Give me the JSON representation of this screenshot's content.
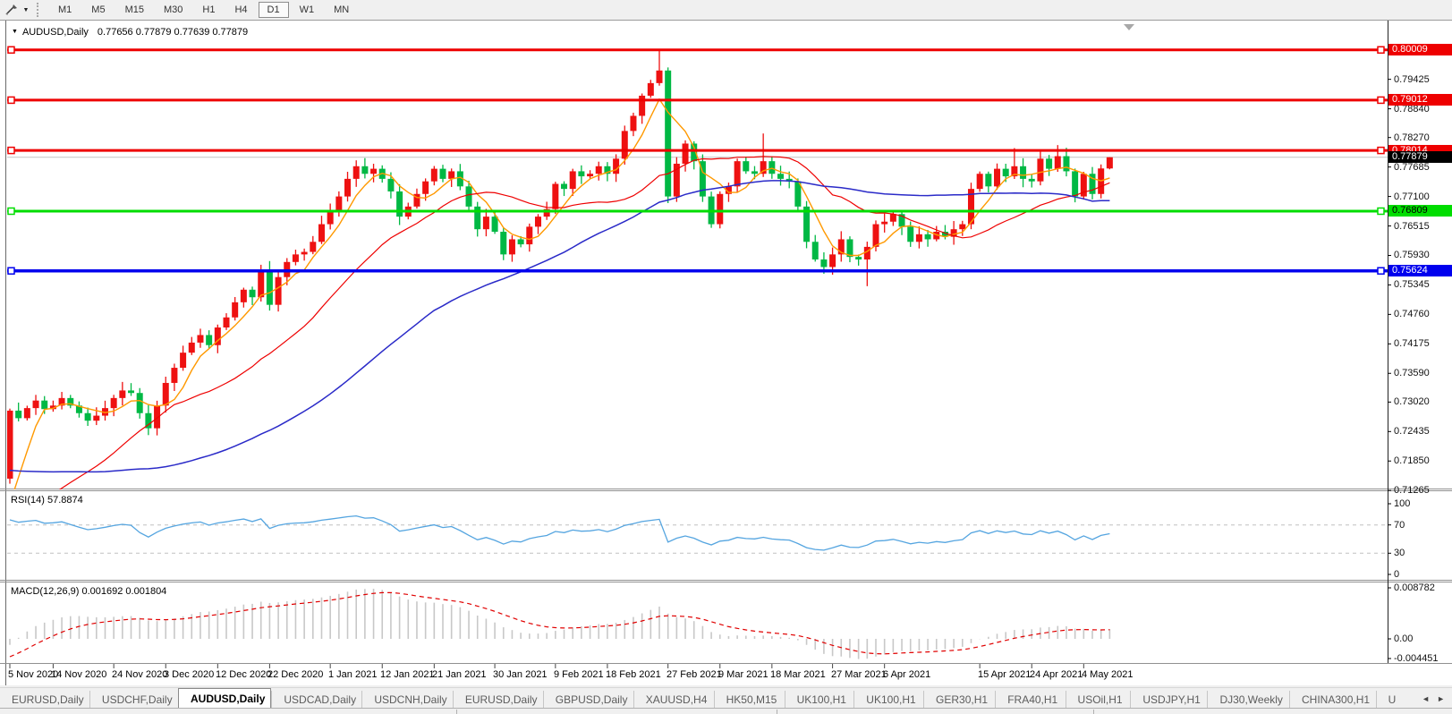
{
  "icons": {
    "symbol_dropdown": "▼",
    "tool_dropdown": "▼",
    "tab_scroll_left": "◄",
    "tab_scroll_right": "►"
  },
  "toolbar": {
    "timeframes": [
      "M1",
      "M5",
      "M15",
      "M30",
      "H1",
      "H4",
      "D1",
      "W1",
      "MN"
    ],
    "selected": "D1"
  },
  "chart": {
    "symbol_label": "AUDUSD,Daily",
    "ohlc_text": "0.77656 0.77879 0.77639 0.77879",
    "open": "0.77656",
    "high": "0.77879",
    "low": "0.77639",
    "close": "0.77879",
    "scale": {
      "min": 0.71304,
      "max": 0.80502
    },
    "y_ticks": [
      "0.79425",
      "0.78840",
      "0.78270",
      "0.77685",
      "0.77100",
      "0.76515",
      "0.75930",
      "0.75345",
      "0.74760",
      "0.74175",
      "0.73590",
      "0.73020",
      "0.72435",
      "0.71850",
      "0.71265"
    ],
    "x_labels": [
      {
        "text": "5 Nov 2020",
        "bar": 0
      },
      {
        "text": "14 Nov 2020",
        "bar": 5
      },
      {
        "text": "24 Nov 2020",
        "bar": 12
      },
      {
        "text": "3 Dec 2020",
        "bar": 18
      },
      {
        "text": "12 Dec 2020",
        "bar": 24
      },
      {
        "text": "22 Dec 2020",
        "bar": 30
      },
      {
        "text": "1 Jan 2021",
        "bar": 37
      },
      {
        "text": "12 Jan 2021",
        "bar": 43
      },
      {
        "text": "21 Jan 2021",
        "bar": 49
      },
      {
        "text": "30 Jan 2021",
        "bar": 56
      },
      {
        "text": "9 Feb 2021",
        "bar": 63
      },
      {
        "text": "18 Feb 2021",
        "bar": 69
      },
      {
        "text": "27 Feb 2021",
        "bar": 76
      },
      {
        "text": "9 Mar 2021",
        "bar": 82
      },
      {
        "text": "18 Mar 2021",
        "bar": 88
      },
      {
        "text": "27 Mar 2021",
        "bar": 95
      },
      {
        "text": "6 Apr 2021",
        "bar": 101
      },
      {
        "text": "15 Apr 2021",
        "bar": 112
      },
      {
        "text": "24 Apr 2021",
        "bar": 118
      },
      {
        "text": "4 May 2021",
        "bar": 124
      }
    ],
    "h_lines": [
      {
        "price": "0.80009",
        "value": 0.80009,
        "color": "#ee0000",
        "width": 3,
        "label_fg": "#ffffff"
      },
      {
        "price": "0.79012",
        "value": 0.79012,
        "color": "#ee0000",
        "width": 3,
        "label_fg": "#ffffff"
      },
      {
        "price": "0.78014",
        "value": 0.78014,
        "color": "#ee0000",
        "width": 3,
        "label_fg": "#ffffff"
      },
      {
        "price": "0.76809",
        "value": 0.76809,
        "color": "#00dd00",
        "width": 3,
        "label_fg": "#000000"
      },
      {
        "price": "0.75624",
        "value": 0.75624,
        "color": "#0000ee",
        "width": 3.5,
        "label_fg": "#ffffff"
      }
    ],
    "price_line": {
      "price": "0.77879",
      "value": 0.77879,
      "line_color": "#c4c4c4",
      "label_bg": "#000000",
      "label_fg": "#ffffff"
    },
    "colors": {
      "up": "#ee1111",
      "down": "#00b844",
      "background": "#ffffff"
    },
    "ma": [
      {
        "name": "fast",
        "period": 5,
        "color": "#ff9900",
        "width": 1.4
      },
      {
        "name": "medium",
        "period": 20,
        "color": "#ee0000",
        "width": 1.2
      },
      {
        "name": "slow",
        "period": 50,
        "color": "#2a2ac8",
        "width": 1.5
      }
    ],
    "warmup": {
      "count": 50,
      "from": 0.738,
      "to": 0.702,
      "tail": [
        0.7,
        0.7005,
        0.703,
        0.706,
        0.712
      ]
    },
    "closes": [
      0.7285,
      0.727,
      0.729,
      0.7305,
      0.7288,
      0.7295,
      0.731,
      0.7295,
      0.728,
      0.7265,
      0.7275,
      0.729,
      0.731,
      0.7325,
      0.732,
      0.728,
      0.725,
      0.7295,
      0.734,
      0.737,
      0.74,
      0.742,
      0.7435,
      0.7415,
      0.745,
      0.747,
      0.75,
      0.7525,
      0.751,
      0.7565,
      0.7495,
      0.755,
      0.758,
      0.7595,
      0.76,
      0.762,
      0.7655,
      0.768,
      0.771,
      0.7745,
      0.777,
      0.7755,
      0.7765,
      0.7745,
      0.772,
      0.767,
      0.769,
      0.7715,
      0.774,
      0.7765,
      0.7745,
      0.776,
      0.773,
      0.769,
      0.7645,
      0.767,
      0.764,
      0.7595,
      0.7625,
      0.7615,
      0.765,
      0.767,
      0.7685,
      0.7735,
      0.7725,
      0.776,
      0.775,
      0.7755,
      0.777,
      0.7755,
      0.7785,
      0.784,
      0.787,
      0.791,
      0.7935,
      0.796,
      0.771,
      0.7775,
      0.7815,
      0.778,
      0.771,
      0.7655,
      0.7715,
      0.773,
      0.778,
      0.776,
      0.7755,
      0.778,
      0.7755,
      0.7745,
      0.774,
      0.769,
      0.762,
      0.7585,
      0.757,
      0.7595,
      0.7625,
      0.759,
      0.7585,
      0.761,
      0.7655,
      0.766,
      0.7675,
      0.765,
      0.762,
      0.7635,
      0.7625,
      0.764,
      0.763,
      0.7645,
      0.7655,
      0.7725,
      0.7755,
      0.773,
      0.7765,
      0.775,
      0.777,
      0.7745,
      0.774,
      0.7785,
      0.7765,
      0.779,
      0.776,
      0.771,
      0.7755,
      0.7715,
      0.77656,
      0.77879
    ],
    "overrides": {
      "0": {
        "o": 0.715,
        "l": 0.714
      },
      "75": {
        "h": 0.80009
      },
      "87": {
        "h": 0.7835
      },
      "99": {
        "l": 0.7532
      },
      "116": {
        "h": 0.7806
      },
      "121": {
        "h": 0.7812
      },
      "127": {
        "o": 0.77656,
        "h": 0.77879,
        "l": 0.77639,
        "c": 0.77879
      }
    }
  },
  "rsi": {
    "label": "RSI(14)",
    "value": "57.8874",
    "period": 14,
    "levels": [
      "100",
      "70",
      "30",
      "0"
    ],
    "line_color": "#55a5e0",
    "level_line_color": "#c0c0c0"
  },
  "macd": {
    "label": "MACD(12,26,9)",
    "values": "0.001692 0.001804",
    "params": [
      12,
      26,
      9
    ],
    "axis": [
      "0.008782",
      "0.00",
      "-0.004451"
    ],
    "hist_color": "#c8c8c8",
    "signal_color": "#e00000"
  },
  "tabs": {
    "items": [
      "EURUSD,Daily",
      "USDCHF,Daily",
      "AUDUSD,Daily",
      "USDCAD,Daily",
      "USDCNH,Daily",
      "EURUSD,Daily",
      "GBPUSD,Daily",
      "XAUUSD,H4",
      "HK50,M15",
      "UK100,H1",
      "UK100,H1",
      "GER30,H1",
      "FRA40,H1",
      "USOil,H1",
      "USDJPY,H1",
      "DJ30,Weekly",
      "CHINA300,H1",
      "U"
    ],
    "active_index": 2
  }
}
